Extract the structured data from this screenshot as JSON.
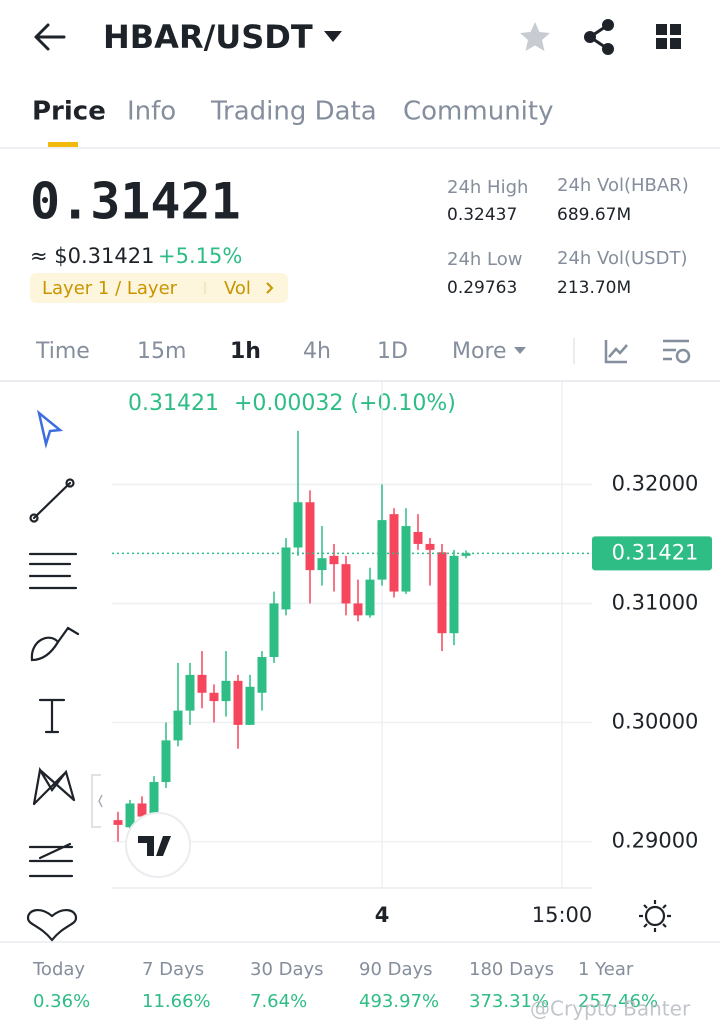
{
  "header": {
    "pair": "HBAR/USDT"
  },
  "tabs": [
    "Price",
    "Info",
    "Trading Data",
    "Community"
  ],
  "price": {
    "last": "0.31421",
    "usd": "≈ $0.31421",
    "change": "+5.15%",
    "tags": [
      "Layer 1 / Layer",
      "Vol"
    ]
  },
  "stats": [
    {
      "label": "24h High",
      "value": "0.32437"
    },
    {
      "label": "24h Vol(HBAR)",
      "value": "689.67M"
    },
    {
      "label": "24h Low",
      "value": "0.29763"
    },
    {
      "label": "24h Vol(USDT)",
      "value": "213.70M"
    }
  ],
  "intervals": [
    "Time",
    "15m",
    "1h",
    "4h",
    "1D",
    "More"
  ],
  "chart_data": {
    "type": "candlestick",
    "legend": {
      "price": "0.31421",
      "change": "+0.00032 (+0.10%)"
    },
    "x": [
      0,
      1,
      2,
      3,
      4,
      5,
      6,
      7,
      8,
      9,
      10,
      11,
      12,
      13,
      14,
      15,
      16,
      17,
      18,
      19,
      20,
      21,
      22,
      23,
      24,
      25,
      26,
      27,
      28,
      29
    ],
    "open": [
      0.2918,
      0.2912,
      0.2932,
      0.2921,
      0.295,
      0.2985,
      0.301,
      0.304,
      0.3025,
      0.3018,
      0.3035,
      0.2998,
      0.3025,
      0.3055,
      0.3095,
      0.3147,
      0.3185,
      0.3128,
      0.314,
      0.3133,
      0.31,
      0.309,
      0.312,
      0.3175,
      0.311,
      0.316,
      0.315,
      0.3143,
      0.3075,
      0.314
    ],
    "high": [
      0.2925,
      0.2935,
      0.2938,
      0.2955,
      0.3,
      0.305,
      0.305,
      0.306,
      0.3032,
      0.306,
      0.304,
      0.304,
      0.306,
      0.311,
      0.3155,
      0.3245,
      0.3195,
      0.3165,
      0.315,
      0.314,
      0.312,
      0.313,
      0.32,
      0.318,
      0.318,
      0.3175,
      0.3155,
      0.315,
      0.3145,
      0.31445
    ],
    "low": [
      0.29,
      0.2905,
      0.2916,
      0.2918,
      0.2945,
      0.298,
      0.2998,
      0.3012,
      0.3,
      0.3005,
      0.2978,
      0.2998,
      0.301,
      0.305,
      0.309,
      0.314,
      0.31,
      0.3115,
      0.311,
      0.309,
      0.3085,
      0.3088,
      0.3115,
      0.3105,
      0.3108,
      0.3145,
      0.3115,
      0.306,
      0.3065,
      0.3138
    ],
    "close": [
      0.2914,
      0.2932,
      0.2921,
      0.295,
      0.2985,
      0.301,
      0.304,
      0.3025,
      0.3018,
      0.3035,
      0.2998,
      0.303,
      0.3055,
      0.31,
      0.3147,
      0.3185,
      0.3128,
      0.3138,
      0.3133,
      0.31,
      0.309,
      0.312,
      0.317,
      0.311,
      0.3165,
      0.315,
      0.3145,
      0.3075,
      0.314,
      0.31421
    ],
    "up_color": "#2ebd85",
    "down_color": "#f6465d",
    "xlim": [
      -0.5,
      39.5
    ],
    "xticks": [
      {
        "value": 22,
        "label": "4"
      },
      {
        "value": 37,
        "label": "15:00"
      }
    ],
    "ylim": [
      0.2861,
      0.3286
    ],
    "yticks": [
      {
        "value": 0.29,
        "label": "0.29000"
      },
      {
        "value": 0.3,
        "label": "0.30000"
      },
      {
        "value": 0.31,
        "label": "0.31000"
      },
      {
        "value": 0.32,
        "label": "0.32000"
      }
    ],
    "last_price": 0.31421,
    "grid": true
  },
  "performance": [
    {
      "period": "Today",
      "value": "0.36%"
    },
    {
      "period": "7 Days",
      "value": "11.66%"
    },
    {
      "period": "30 Days",
      "value": "7.64%"
    },
    {
      "period": "90 Days",
      "value": "493.97%"
    },
    {
      "period": "180 Days",
      "value": "373.31%"
    },
    {
      "period": "1 Year",
      "value": "257.46%"
    }
  ],
  "watermark": "@Crypto Banter"
}
